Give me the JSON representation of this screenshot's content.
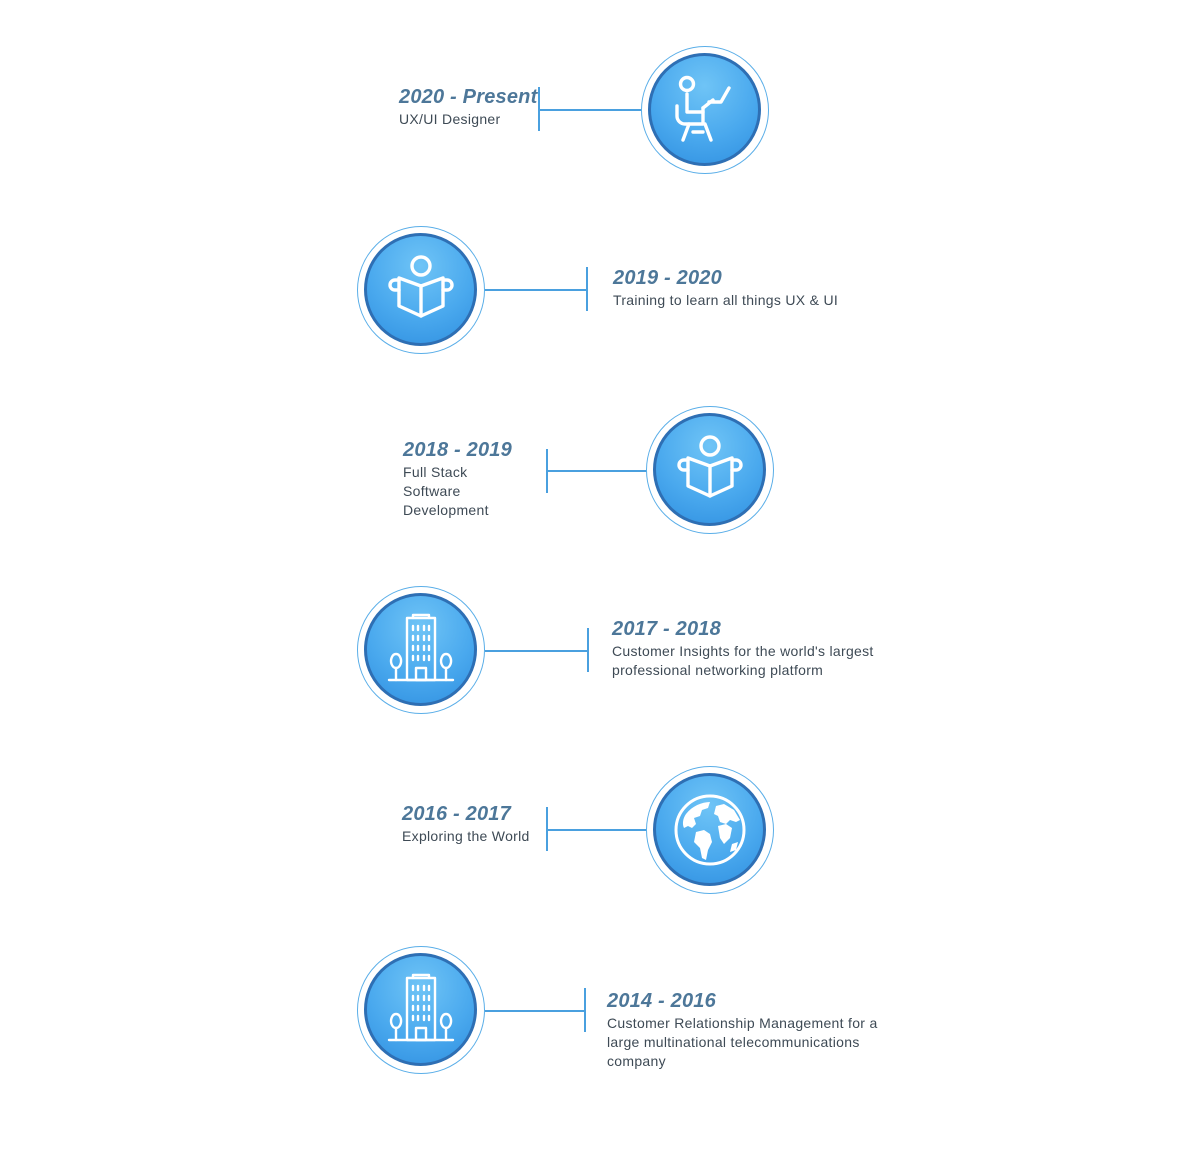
{
  "timeline": [
    {
      "years": "2020 - Present",
      "title": "UX/UI Designer",
      "icon": "person-at-laptop-icon"
    },
    {
      "years": "2019 - 2020",
      "title": "Training to learn all things UX & UI",
      "icon": "person-reading-icon"
    },
    {
      "years": "2018 - 2019",
      "title": "Full Stack Software Development",
      "icon": "person-reading-icon"
    },
    {
      "years": "2017 - 2018",
      "title": "Customer Insights for the world's largest professional networking platform",
      "icon": "office-building-icon"
    },
    {
      "years": "2016 - 2017",
      "title": "Exploring the World",
      "icon": "globe-icon"
    },
    {
      "years": "2014 - 2016",
      "title": "Customer Relationship Management for a large multinational telecommunications company",
      "icon": "office-building-icon"
    }
  ],
  "colors": {
    "accent": "#4aa9ee",
    "badge_border": "#2e6fb4",
    "year_text": "#4d7799",
    "body_text": "#3e4a55",
    "connector": "#4aa0df"
  }
}
